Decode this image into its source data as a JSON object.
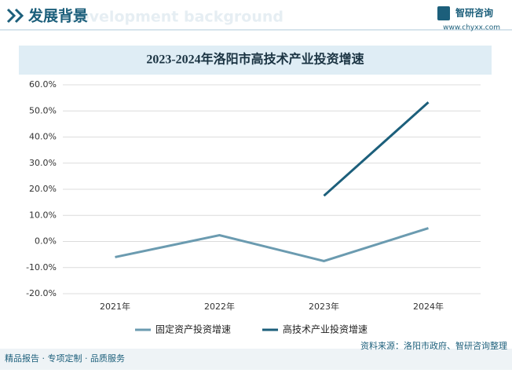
{
  "header": {
    "title": "发展背景",
    "subtitle": "Development background",
    "logo": "智研咨询",
    "website": "www.chyxx.com"
  },
  "chart_data": {
    "type": "line",
    "title": "2023-2024年洛阳市高技术产业投资增速",
    "categories": [
      "2021年",
      "2022年",
      "2023年",
      "2024年"
    ],
    "series": [
      {
        "name": "固定资产投资增速",
        "color": "#6b9bb0",
        "values": [
          -6,
          2.4,
          -7.5,
          5.1
        ]
      },
      {
        "name": "高技术产业投资增速",
        "color": "#1c5f7b",
        "values": [
          null,
          null,
          17.5,
          53.3
        ]
      }
    ],
    "ylim": [
      -20,
      60
    ],
    "yticks": [
      {
        "value": -20,
        "label": "-20.0%"
      },
      {
        "value": -10,
        "label": "-10.0%"
      },
      {
        "value": 0,
        "label": "0.0%"
      },
      {
        "value": 10,
        "label": "10.0%"
      },
      {
        "value": 20,
        "label": "20.0%"
      },
      {
        "value": 30,
        "label": "30.0%"
      },
      {
        "value": 40,
        "label": "40.0%"
      },
      {
        "value": 50,
        "label": "50.0%"
      },
      {
        "value": 60,
        "label": "60.0%"
      }
    ],
    "grid": true
  },
  "footer": {
    "left": "精品报告 · 专项定制 · 品质服务",
    "source": "资料来源：洛阳市政府、智研咨询整理"
  }
}
